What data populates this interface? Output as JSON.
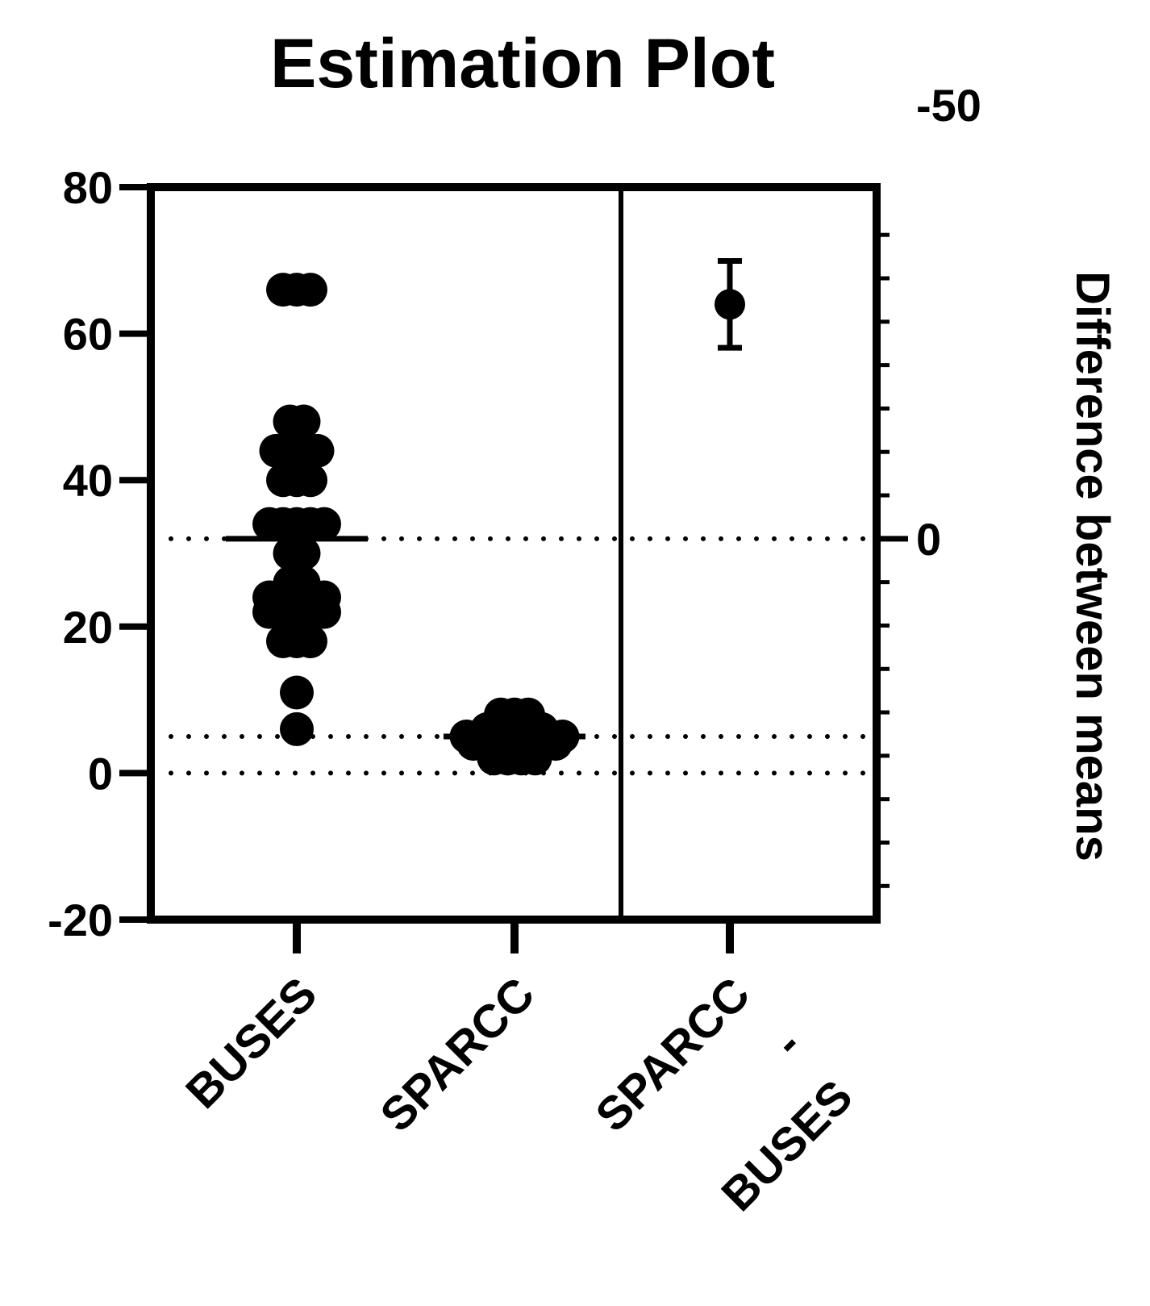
{
  "chart_data": {
    "type": "scatter",
    "title": "Estimation Plot",
    "categories": [
      "BUSES",
      "SPARCC",
      "SPARCC - BUSES"
    ],
    "category_label_lines": [
      [
        "BUSES"
      ],
      [
        "SPARCC"
      ],
      [
        "SPARCC",
        "-",
        "BUSES"
      ]
    ],
    "left_axis": {
      "label": "",
      "ylim": [
        -20,
        80
      ],
      "ticks": [
        -20,
        0,
        20,
        40,
        60,
        80
      ]
    },
    "right_axis": {
      "label": "Difference between means",
      "ylim": [
        -50,
        50
      ],
      "ticks": [
        -50,
        0
      ],
      "minor_step": 5
    },
    "grid": false,
    "legend": "none",
    "series": [
      {
        "name": "BUSES",
        "values": [
          66,
          66,
          66,
          48,
          48,
          44,
          44,
          44,
          44,
          40,
          40,
          40,
          34,
          34,
          34,
          34,
          34,
          30,
          30,
          26,
          26,
          24,
          24,
          24,
          24,
          24,
          22,
          22,
          22,
          22,
          22,
          18,
          18,
          18,
          11,
          6
        ],
        "mean": 32
      },
      {
        "name": "SPARCC",
        "values": [
          8,
          8,
          8,
          7,
          7,
          7,
          6,
          6,
          6,
          6,
          6,
          5,
          5,
          5,
          5,
          5,
          5,
          5,
          5,
          4,
          4,
          4,
          4,
          4,
          4,
          4,
          3,
          3,
          3,
          3,
          2,
          2,
          2,
          2
        ],
        "mean": 5
      },
      {
        "name": "SPARCC - BUSES",
        "difference_mean": -27,
        "ci": [
          -32,
          -22
        ]
      }
    ],
    "reference_lines": [
      {
        "axis": "left",
        "value": 32,
        "style": "dotted"
      },
      {
        "axis": "left",
        "value": 5,
        "style": "dotted"
      },
      {
        "axis": "left",
        "value": 0,
        "style": "dotted"
      }
    ]
  },
  "colors": {
    "foreground": "#000000",
    "background": "#ffffff"
  }
}
